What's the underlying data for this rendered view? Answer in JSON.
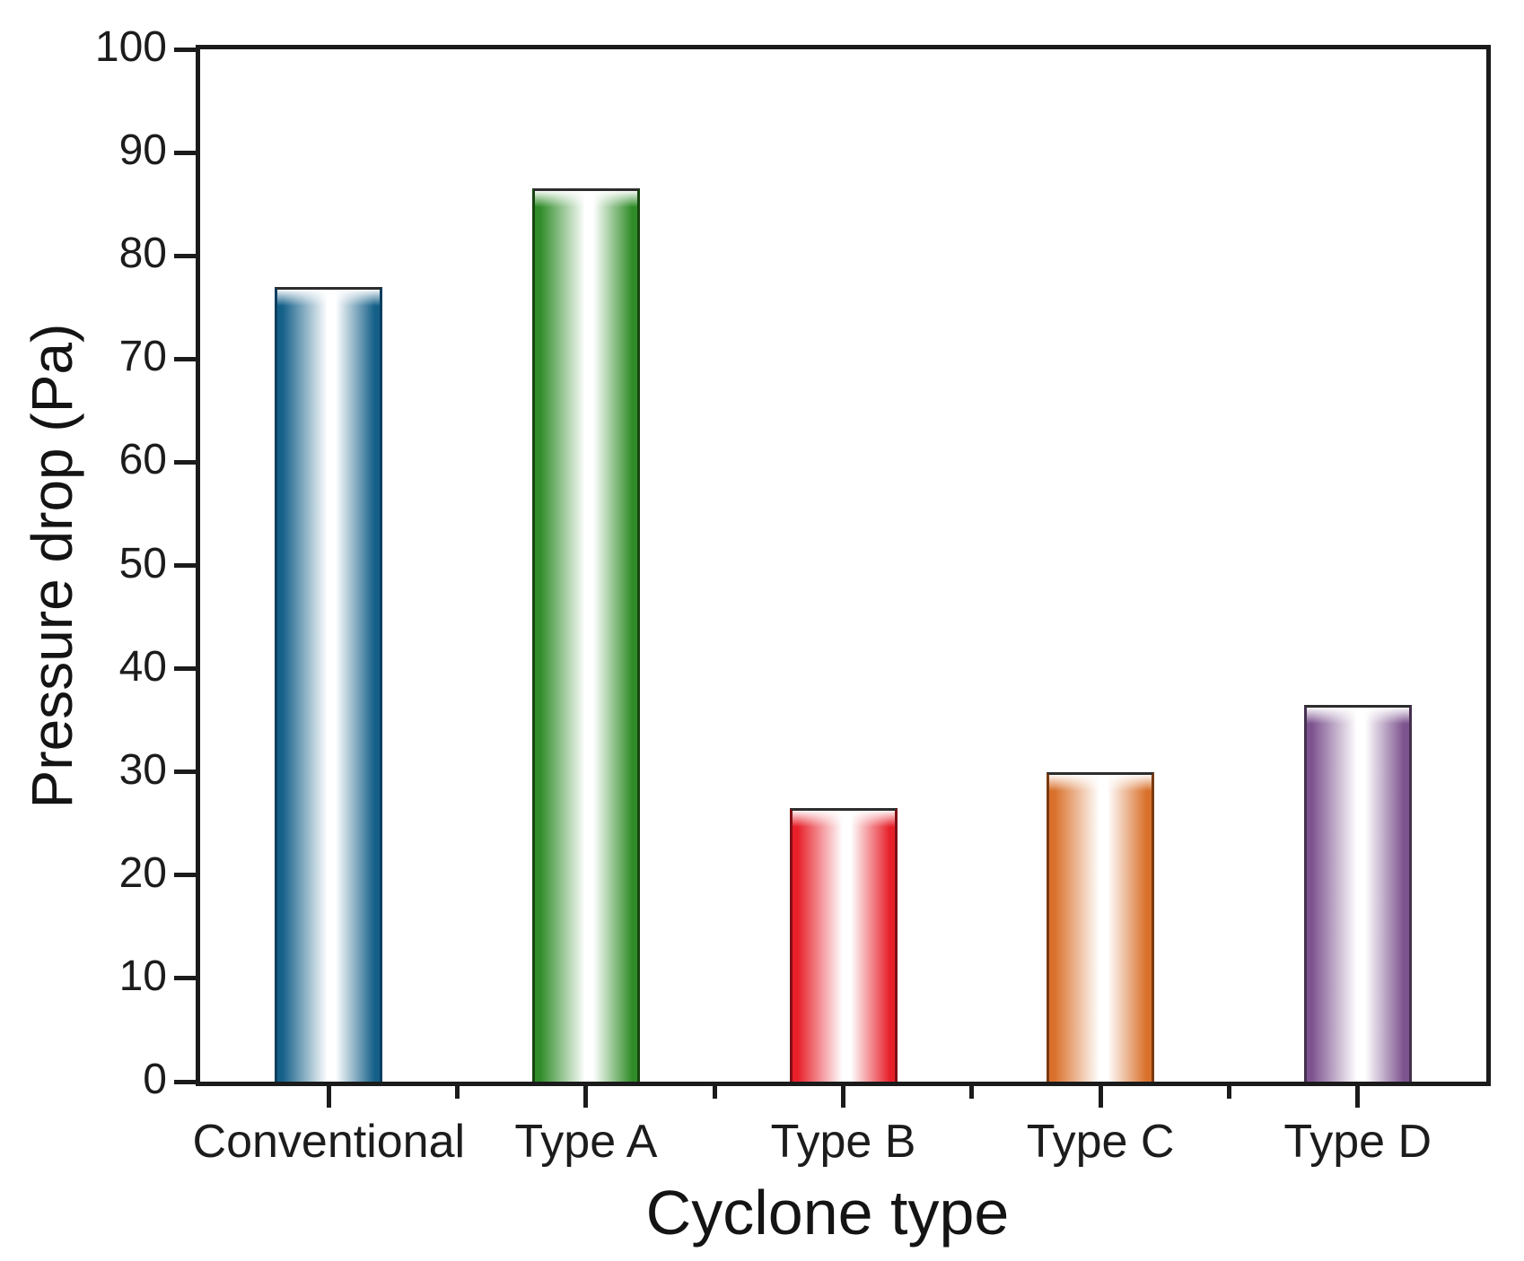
{
  "chart_data": {
    "type": "bar",
    "title": "",
    "xlabel": "Cyclone type",
    "ylabel": "Pressure drop (Pa)",
    "categories": [
      "Conventional",
      "Type A",
      "Type B",
      "Type C",
      "Type D"
    ],
    "values": [
      77,
      86.5,
      26.5,
      30,
      36.5
    ],
    "ylim": [
      0,
      100
    ],
    "ytick_step": 10,
    "ytick_labels": [
      "0",
      "10",
      "20",
      "30",
      "40",
      "50",
      "60",
      "70",
      "80",
      "90",
      "100"
    ],
    "grid": false,
    "legend": "none",
    "background": "#ffffff",
    "axis_color": "#1b1b1b",
    "text_color": "#1c1c1c",
    "bar_style": "cylinder-gradient",
    "bars": [
      {
        "category": "Conventional",
        "value": 77,
        "edge_color": "#156089",
        "outline_color": "#0c3f60"
      },
      {
        "category": "Type A",
        "value": 86.5,
        "edge_color": "#2f8c28",
        "outline_color": "#17450f"
      },
      {
        "category": "Type B",
        "value": 26.5,
        "edge_color": "#e7202a",
        "outline_color": "#7e1116"
      },
      {
        "category": "Type C",
        "value": 30,
        "edge_color": "#d9702b",
        "outline_color": "#7a3a12"
      },
      {
        "category": "Type D",
        "value": 36.5,
        "edge_color": "#7d538f",
        "outline_color": "#44304f"
      }
    ]
  }
}
